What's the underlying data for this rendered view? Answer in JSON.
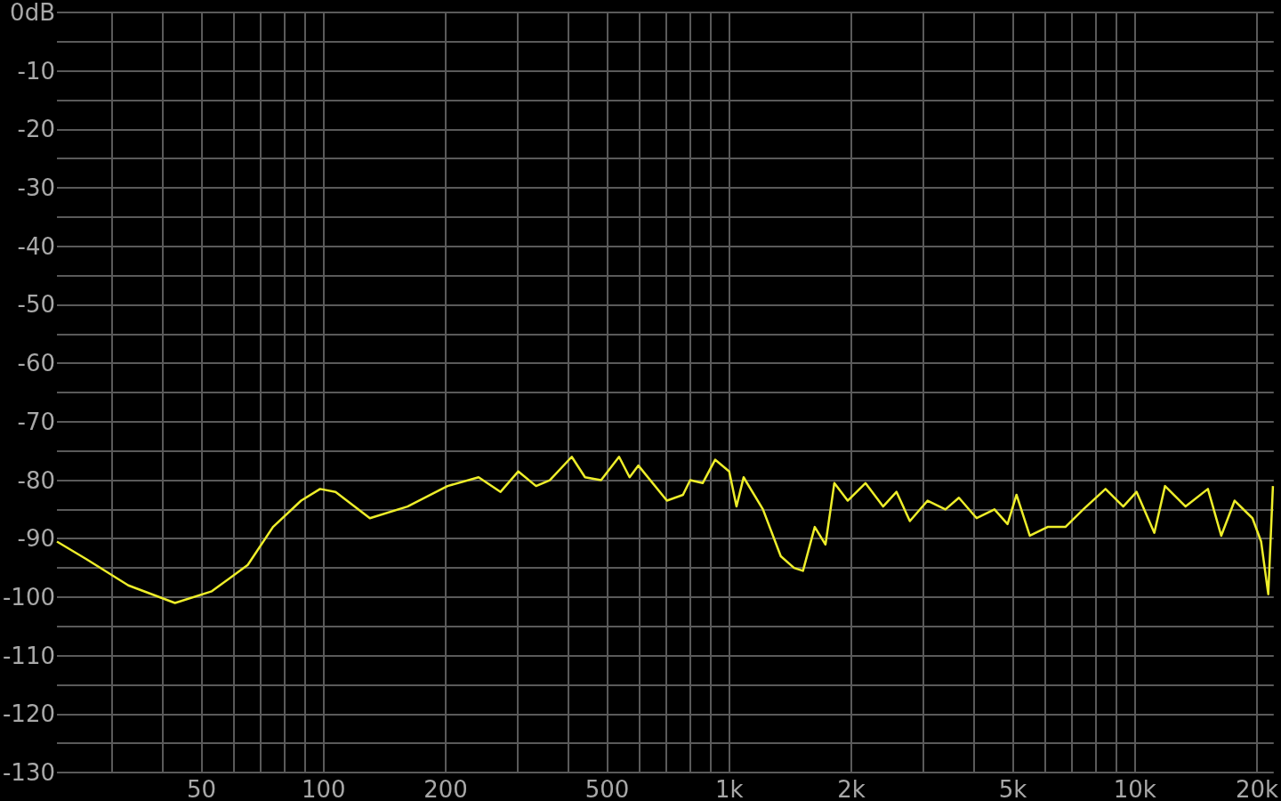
{
  "chart_data": {
    "type": "line",
    "log": "x",
    "grid": true,
    "marker": "none",
    "xlim": [
      22,
      22000
    ],
    "ylim": [
      -130,
      0
    ],
    "xticks": [
      {
        "value": 30,
        "label": null
      },
      {
        "value": 40,
        "label": null
      },
      50,
      {
        "value": 60,
        "label": null
      },
      {
        "value": 70,
        "label": null
      },
      {
        "value": 80,
        "label": null
      },
      {
        "value": 90,
        "label": null
      },
      100,
      200,
      {
        "value": 300,
        "label": null
      },
      {
        "value": 400,
        "label": null
      },
      500,
      {
        "value": 600,
        "label": null
      },
      {
        "value": 700,
        "label": null
      },
      {
        "value": 800,
        "label": null
      },
      {
        "value": 900,
        "label": null
      },
      {
        "value": 1000,
        "label": "1k"
      },
      {
        "value": 2000,
        "label": "2k"
      },
      {
        "value": 3000,
        "label": null
      },
      {
        "value": 4000,
        "label": null
      },
      {
        "value": 5000,
        "label": "5k"
      },
      {
        "value": 6000,
        "label": null
      },
      {
        "value": 7000,
        "label": null
      },
      {
        "value": 8000,
        "label": null
      },
      {
        "value": 9000,
        "label": null
      },
      {
        "value": 10000,
        "label": "10k"
      },
      {
        "value": 20000,
        "label": "20k"
      }
    ],
    "yticks": [
      -130,
      {
        "value": -125,
        "label": null
      },
      -120,
      {
        "value": -115,
        "label": null
      },
      -110,
      {
        "value": -105,
        "label": null
      },
      -100,
      {
        "value": -95,
        "label": null
      },
      -90,
      {
        "value": -85,
        "label": null
      },
      -80,
      {
        "value": -75,
        "label": null
      },
      -70,
      {
        "value": -65,
        "label": null
      },
      -60,
      {
        "value": -55,
        "label": null
      },
      -50,
      {
        "value": -45,
        "label": null
      },
      -40,
      {
        "value": -35,
        "label": null
      },
      -30,
      {
        "value": -25,
        "label": null
      },
      -20,
      {
        "value": -15,
        "label": null
      },
      -10,
      {
        "value": -5,
        "label": null
      },
      {
        "value": 0,
        "label": "0dB"
      }
    ],
    "x": [
      22,
      26,
      33,
      43,
      53,
      65,
      75,
      88,
      98,
      107,
      130,
      161,
      202,
      241,
      273,
      302,
      334,
      361,
      409,
      441,
      483,
      535,
      568,
      597,
      702,
      769,
      801,
      860,
      923,
      1000,
      1042,
      1085,
      1211,
      1340,
      1445,
      1520,
      1625,
      1727,
      1816,
      1959,
      2167,
      2395,
      2585,
      2788,
      3084,
      3412,
      3683,
      4074,
      4508,
      4855,
      5108,
      5508,
      6095,
      6743,
      7460,
      8466,
      9364,
      10100,
      11170,
      11870,
      13340,
      15140,
      16330,
      17620,
      19500,
      20480,
      21330,
      21900
    ],
    "series": [
      {
        "color": "#eeee2a",
        "values": [
          -90.5,
          -93.5,
          -98,
          -101,
          -99,
          -94.5,
          -88,
          -83.5,
          -81.5,
          -82,
          -86.5,
          -84.5,
          -81,
          -79.5,
          -82,
          -78.5,
          -81,
          -80,
          -76,
          -79.5,
          -80,
          -76,
          -79.5,
          -77.5,
          -83.5,
          -82.5,
          -80,
          -80.5,
          -76.5,
          -78.5,
          -84.5,
          -79.5,
          -85,
          -93,
          -95,
          -95.5,
          -88,
          -91,
          -80.5,
          -83.5,
          -80.5,
          -84.5,
          -82,
          -87,
          -83.5,
          -85,
          -83,
          -86.5,
          -85,
          -87.5,
          -82.5,
          -89.5,
          -88,
          -88,
          -85,
          -81.5,
          -84.5,
          -82,
          -89,
          -81,
          -84.5,
          -81.5,
          -89.5,
          -83.5,
          -86.5,
          -90.5,
          -99.5,
          -81
        ]
      }
    ]
  }
}
